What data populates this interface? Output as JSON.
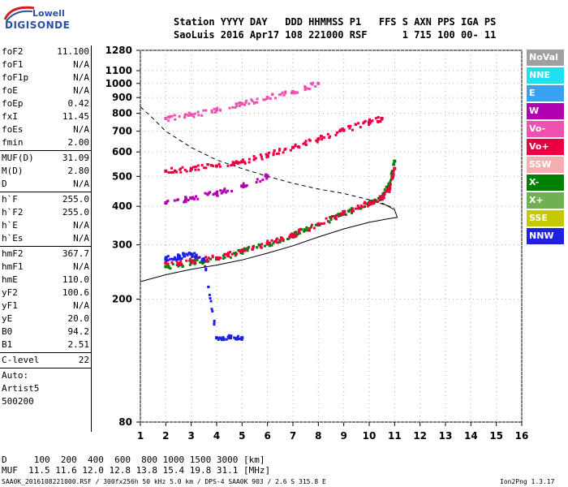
{
  "logo": {
    "top": "Lowell",
    "bottom": "DIGISONDE"
  },
  "header": {
    "row1": "Station YYYY DAY   DDD HHMMSS P1   FFS S AXN PPS IGA PS",
    "row2": "SaoLuis 2016 Apr17 108 221000 RSF      1 715 100 00- 11"
  },
  "params": {
    "group1": [
      {
        "label": "foF2",
        "value": "11.100"
      },
      {
        "label": "foF1",
        "value": "N/A"
      },
      {
        "label": "foF1p",
        "value": "N/A"
      },
      {
        "label": "foE",
        "value": "N/A"
      },
      {
        "label": "foEp",
        "value": "0.42"
      },
      {
        "label": "fxI",
        "value": "11.45"
      },
      {
        "label": "foEs",
        "value": "N/A"
      },
      {
        "label": "fmin",
        "value": "2.00"
      }
    ],
    "group2": [
      {
        "label": "MUF(D)",
        "value": "31.09"
      },
      {
        "label": "M(D)",
        "value": "2.80"
      },
      {
        "label": "D",
        "value": "N/A"
      }
    ],
    "group3": [
      {
        "label": "h`F",
        "value": "255.0"
      },
      {
        "label": "h`F2",
        "value": "255.0"
      },
      {
        "label": "h`E",
        "value": "N/A"
      },
      {
        "label": "h`Es",
        "value": "N/A"
      }
    ],
    "group4": [
      {
        "label": "hmF2",
        "value": "367.7"
      },
      {
        "label": "hmF1",
        "value": "N/A"
      },
      {
        "label": "hmE",
        "value": "110.0"
      },
      {
        "label": "yF2",
        "value": "100.6"
      },
      {
        "label": "yF1",
        "value": "N/A"
      },
      {
        "label": "yE",
        "value": "20.0"
      },
      {
        "label": "B0",
        "value": "94.2"
      },
      {
        "label": "B1",
        "value": "2.51"
      }
    ],
    "clevel": {
      "label": "C-level",
      "value": "22"
    },
    "auto": [
      "Auto:",
      "Artist5",
      "500200"
    ]
  },
  "legend": [
    {
      "label": "NoVal",
      "color": "#a0a0a0"
    },
    {
      "label": "NNE",
      "color": "#22e0f0"
    },
    {
      "label": "E",
      "color": "#3aa0f0"
    },
    {
      "label": "W",
      "color": "#b000b0"
    },
    {
      "label": "Vo-",
      "color": "#f050b0"
    },
    {
      "label": "Vo+",
      "color": "#e80040"
    },
    {
      "label": "SSW",
      "color": "#f4b0b0"
    },
    {
      "label": "X-",
      "color": "#008000"
    },
    {
      "label": "X+",
      "color": "#70b050"
    },
    {
      "label": "SSE",
      "color": "#c8c800"
    },
    {
      "label": "NNW",
      "color": "#2020e0"
    }
  ],
  "footer": {
    "d_row": "D     100  200  400  600  800 1000 1500 3000 [km]",
    "muf_row": "MUF  11.5 11.6 12.0 12.8 13.8 15.4 19.8 31.1 [MHz]",
    "info_line": "SAA0K_2016108221000.RSF / 300fx256h 50 kHz 5.0 km / DPS-4 SAA0K 903 / 2.6 S 315.8 E",
    "version": "Ion2Png 1.3.17"
  },
  "chart_data": {
    "type": "scatter",
    "title": "",
    "xlabel": "",
    "ylabel": "",
    "xlim": [
      1,
      16
    ],
    "ylim": [
      80,
      1280
    ],
    "yscale": "log",
    "x_ticks": [
      1,
      2,
      3,
      4,
      5,
      6,
      7,
      8,
      9,
      10,
      11,
      12,
      13,
      14,
      15,
      16
    ],
    "y_ticks": [
      80,
      200,
      300,
      400,
      500,
      600,
      700,
      800,
      900,
      1000,
      1100,
      1280
    ],
    "grid": true,
    "legend_position": "right",
    "series": [
      {
        "name": "X- (F2 trace)",
        "color": "#008000",
        "x": [
          2.0,
          3.0,
          4.0,
          5.0,
          6.0,
          7.0,
          8.0,
          9.0,
          10.0,
          10.5,
          10.8,
          11.0
        ],
        "y": [
          255,
          262,
          270,
          285,
          302,
          322,
          348,
          378,
          410,
          430,
          470,
          560
        ]
      },
      {
        "name": "Vo+ (F2 trace)",
        "color": "#e80040",
        "x": [
          2.0,
          3.0,
          4.0,
          5.0,
          6.0,
          7.0,
          8.0,
          9.0,
          10.0,
          10.5,
          10.8,
          11.0
        ],
        "y": [
          262,
          266,
          272,
          286,
          303,
          323,
          350,
          380,
          410,
          425,
          455,
          530
        ]
      },
      {
        "name": "Vo+ (2F)",
        "color": "#e80040",
        "x": [
          2.0,
          3.0,
          4.0,
          5.0,
          6.0,
          7.0,
          8.0,
          9.0,
          10.0,
          10.5
        ],
        "y": [
          520,
          530,
          540,
          558,
          585,
          620,
          660,
          705,
          750,
          770
        ]
      },
      {
        "name": "Vo- (3F)",
        "color": "#f050b0",
        "x": [
          2.0,
          3.0,
          4.0,
          5.0,
          6.0,
          7.0,
          8.0
        ],
        "y": [
          770,
          790,
          820,
          860,
          900,
          940,
          1000
        ]
      },
      {
        "name": "W (Es)",
        "color": "#b000b0",
        "x": [
          2.0,
          3.0,
          4.0,
          5.0,
          6.0
        ],
        "y": [
          410,
          425,
          440,
          465,
          500
        ]
      },
      {
        "name": "NNW",
        "color": "#2020e0",
        "x": [
          2.0,
          2.5,
          3.0,
          3.5,
          4.0,
          4.5,
          5.0
        ],
        "y": [
          270,
          275,
          280,
          270,
          150,
          150,
          150
        ]
      }
    ],
    "profiles": [
      {
        "name": "true height profile",
        "style": "solid",
        "x": [
          1.0,
          2.0,
          3.0,
          4.0,
          5.0,
          6.0,
          7.0,
          8.0,
          9.0,
          10.0,
          10.8,
          11.1,
          11.0,
          10.5
        ],
        "y": [
          228,
          240,
          250,
          258,
          268,
          282,
          298,
          318,
          338,
          355,
          365,
          368,
          390,
          410
        ]
      },
      {
        "name": "MUF curve",
        "style": "dashed",
        "x": [
          1.0,
          1.5,
          2.0,
          3.0,
          4.0,
          5.0,
          6.0,
          7.0,
          8.0,
          9.0,
          10.0,
          11.0
        ],
        "y": [
          840,
          770,
          700,
          620,
          565,
          530,
          500,
          475,
          455,
          440,
          420,
          395
        ]
      }
    ]
  }
}
